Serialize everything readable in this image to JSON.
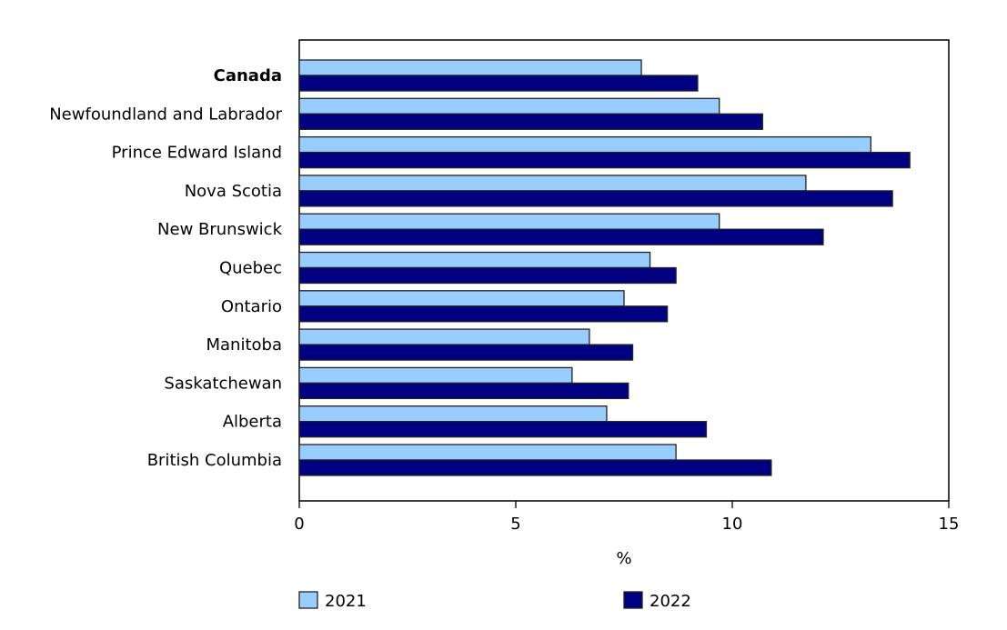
{
  "chart_data": {
    "type": "bar",
    "orientation": "horizontal",
    "categories": [
      "Canada",
      "Newfoundland and Labrador",
      "Prince Edward Island",
      "Nova Scotia",
      "New Brunswick",
      "Quebec",
      "Ontario",
      "Manitoba",
      "Saskatchewan",
      "Alberta",
      "British Columbia"
    ],
    "bold_categories": [
      "Canada"
    ],
    "series": [
      {
        "name": "2021",
        "color": "#99CCFF",
        "values": [
          7.9,
          9.7,
          13.2,
          11.7,
          9.7,
          8.1,
          7.5,
          6.7,
          6.3,
          7.1,
          8.7
        ]
      },
      {
        "name": "2022",
        "color": "#000080",
        "values": [
          9.2,
          10.7,
          14.1,
          13.7,
          12.1,
          8.7,
          8.5,
          7.7,
          7.6,
          9.4,
          10.9
        ]
      }
    ],
    "xlabel": "%",
    "ylabel": "",
    "xlim": [
      0,
      15
    ],
    "xticks": [
      "0",
      "5",
      "10",
      "15"
    ],
    "grid": false,
    "legend_position": "bottom"
  }
}
